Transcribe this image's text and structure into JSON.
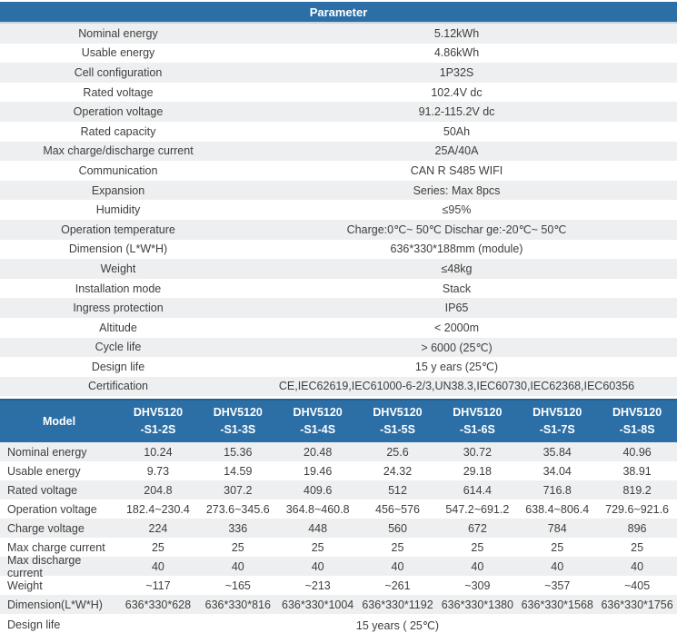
{
  "colors": {
    "header_blue": "#2b6fa6",
    "row_stripe_gray": "#edeff0",
    "header_text": "#ffffff",
    "body_text": "#3e3e3e"
  },
  "parameter_table": {
    "title": "Parameter",
    "rows": [
      {
        "label": "Nominal energy",
        "value": "5.12kWh"
      },
      {
        "label": "Usable energy",
        "value": "4.86kWh"
      },
      {
        "label": "Cell configuration",
        "value": "1P32S"
      },
      {
        "label": "Rated voltage",
        "value": "102.4V dc"
      },
      {
        "label": "Operation voltage",
        "value": "91.2-115.2V dc"
      },
      {
        "label": "Rated capacity",
        "value": "50Ah"
      },
      {
        "label": "Max charge/discharge current",
        "value": "25A/40A"
      },
      {
        "label": "Communication",
        "value": "CAN R S485 WIFI"
      },
      {
        "label": "Expansion",
        "value": "Series: Max 8pcs"
      },
      {
        "label": "Humidity",
        "value": "≤95%"
      },
      {
        "label": "Operation temperature",
        "value": "Charge:0℃~ 50℃ Dischar ge:-20℃~ 50℃"
      },
      {
        "label": "Dimension (L*W*H)",
        "value": "636*330*188mm (module)"
      },
      {
        "label": "Weight",
        "value": "≤48kg"
      },
      {
        "label": "Installation mode",
        "value": "Stack"
      },
      {
        "label": "Ingress protection",
        "value": "IP65"
      },
      {
        "label": "Altitude",
        "value": "< 2000m"
      },
      {
        "label": "Cycle life",
        "value": "> 6000 (25℃)"
      },
      {
        "label": "Design life",
        "value": "15 y ears (25℃)"
      },
      {
        "label": "Certification",
        "value": "CE,IEC62619,IEC61000-6-2/3,UN38.3,IEC60730,IEC62368,IEC60356"
      }
    ]
  },
  "model_table": {
    "header_label": "Model",
    "models": [
      {
        "line1": "DHV5120",
        "line2": "-S1-2S"
      },
      {
        "line1": "DHV5120",
        "line2": "-S1-3S"
      },
      {
        "line1": "DHV5120",
        "line2": "-S1-4S"
      },
      {
        "line1": "DHV5120",
        "line2": "-S1-5S"
      },
      {
        "line1": "DHV5120",
        "line2": "-S1-6S"
      },
      {
        "line1": "DHV5120",
        "line2": "-S1-7S"
      },
      {
        "line1": "DHV5120",
        "line2": "-S1-8S"
      }
    ],
    "rows": [
      {
        "label": "Nominal energy",
        "values": [
          "10.24",
          "15.36",
          "20.48",
          "25.6",
          "30.72",
          "35.84",
          "40.96"
        ]
      },
      {
        "label": "Usable energy",
        "values": [
          "9.73",
          "14.59",
          "19.46",
          "24.32",
          "29.18",
          "34.04",
          "38.91"
        ]
      },
      {
        "label": "Rated voltage",
        "values": [
          "204.8",
          "307.2",
          "409.6",
          "512",
          "614.4",
          "716.8",
          "819.2"
        ]
      },
      {
        "label": "Operation voltage",
        "values": [
          "182.4~230.4",
          "273.6~345.6",
          "364.8~460.8",
          "456~576",
          "547.2~691.2",
          "638.4~806.4",
          "729.6~921.6"
        ]
      },
      {
        "label": "Charge voltage",
        "values": [
          "224",
          "336",
          "448",
          "560",
          "672",
          "784",
          "896"
        ]
      },
      {
        "label": "Max charge current",
        "values": [
          "25",
          "25",
          "25",
          "25",
          "25",
          "25",
          "25"
        ]
      },
      {
        "label": "Max discharge current",
        "values": [
          "40",
          "40",
          "40",
          "40",
          "40",
          "40",
          "40"
        ]
      },
      {
        "label": "Weight",
        "values": [
          "~117",
          "~165",
          "~213",
          "~261",
          "~309",
          "~357",
          "~405"
        ]
      },
      {
        "label": "Dimension(L*W*H)",
        "values": [
          "636*330*628",
          "636*330*816",
          "636*330*1004",
          "636*330*1192",
          "636*330*1380",
          "636*330*1568",
          "636*330*1756"
        ]
      }
    ],
    "footer_row": {
      "label": "Design life",
      "value": "15 years ( 25℃)"
    }
  }
}
